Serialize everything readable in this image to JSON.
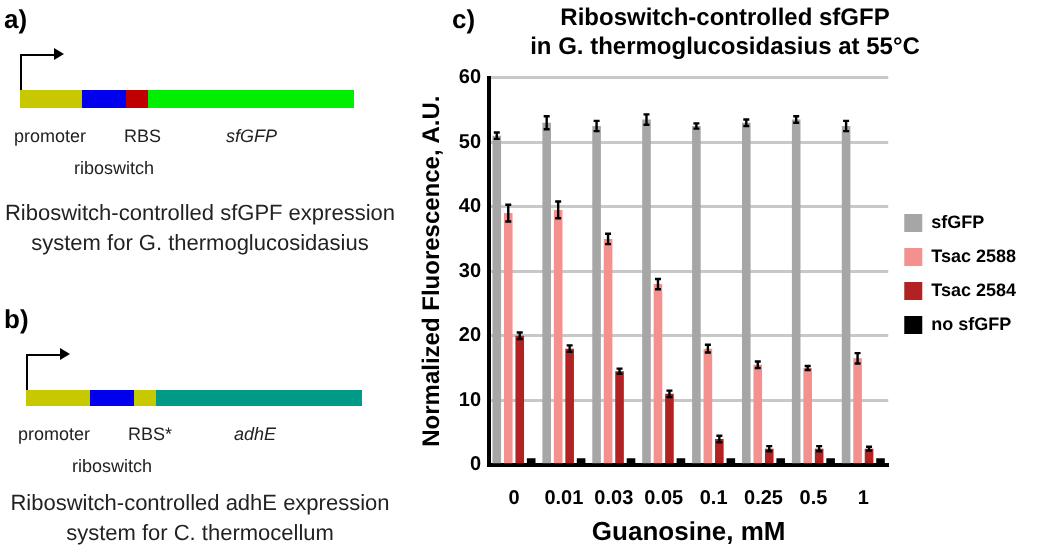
{
  "chart_data": {
    "type": "bar",
    "title": "Riboswitch-controlled sfGFP\nin G. thermoglucosidasius at 55°C",
    "xlabel": "Guanosine, mM",
    "ylabel": "Normalized Fluorescence, A.U.",
    "categories": [
      "0",
      "0.01",
      "0.03",
      "0.05",
      "0.1",
      "0.25",
      "0.5",
      "1"
    ],
    "series": [
      {
        "name": "sfGFP",
        "color": "#a6a6a6",
        "values": [
          51,
          53,
          52.5,
          53.5,
          52.5,
          53,
          53.5,
          52.5
        ],
        "errors": [
          0.5,
          1,
          0.8,
          0.8,
          0.4,
          0.5,
          0.5,
          0.8
        ]
      },
      {
        "name": "Tsac 2588",
        "color": "#f4908e",
        "values": [
          39,
          39.5,
          35,
          28,
          18,
          15.5,
          15,
          16.5
        ],
        "errors": [
          1.3,
          1.3,
          0.8,
          0.8,
          0.6,
          0.5,
          0.3,
          0.8
        ]
      },
      {
        "name": "Tsac 2584",
        "color": "#b22222",
        "values": [
          20,
          18,
          14.5,
          11,
          4,
          2.5,
          2.5,
          2.5
        ],
        "errors": [
          0.5,
          0.5,
          0.4,
          0.5,
          0.5,
          0.4,
          0.4,
          0.3
        ]
      },
      {
        "name": "no sfGFP",
        "color": "#000000",
        "values": [
          1,
          1,
          1,
          1,
          1,
          1,
          1,
          1
        ]
      }
    ],
    "ylim": [
      0,
      60
    ],
    "yticks": [
      0,
      10,
      20,
      30,
      40,
      50,
      60
    ],
    "grid": "y",
    "legend": "right",
    "annotations": [
      "a)",
      "promoter",
      "riboswitch",
      "RBS",
      "sfGFP",
      "Riboswitch-controlled sfGPF expression system for G. thermoglucosidasius",
      "b)",
      "promoter",
      "riboswitch",
      "RBS*",
      "adhE",
      "Riboswitch-controlled adhE expression system for C. thermocellum",
      "c)"
    ]
  }
}
